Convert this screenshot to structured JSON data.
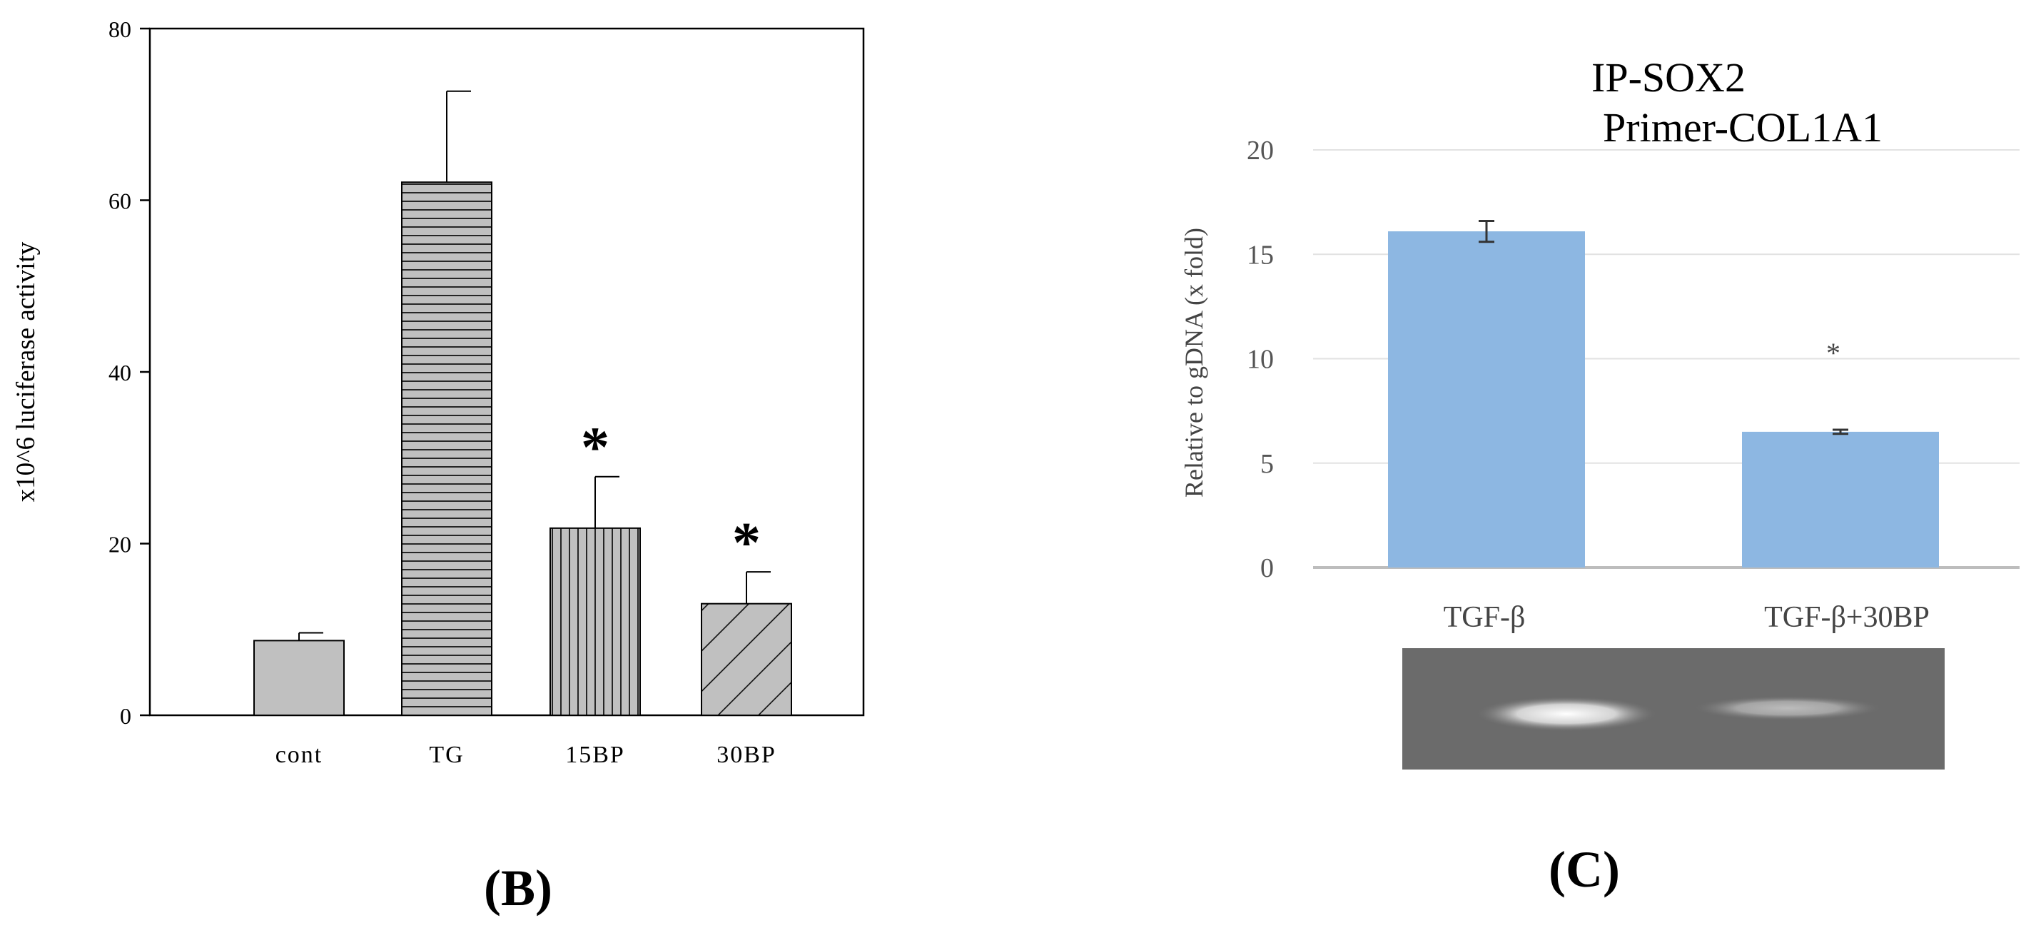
{
  "chart_data": [
    {
      "type": "bar",
      "panel_label": "B",
      "title": "",
      "xlabel": "",
      "ylabel": "x10^6 luciferase activity",
      "ylim": [
        0,
        80
      ],
      "yticks": [
        0,
        20,
        40,
        60,
        80
      ],
      "categories": [
        "cont",
        "TG",
        "15BP",
        "30BP"
      ],
      "values": [
        8.7,
        62.1,
        21.8,
        13.0
      ],
      "errors": [
        0.9,
        10.6,
        6.0,
        3.7
      ],
      "significance": [
        "",
        "",
        "*",
        "*"
      ],
      "patterns": [
        "solid",
        "horizontal",
        "vertical",
        "diagonal"
      ],
      "bar_color": "#c0c0c0",
      "grid": false
    },
    {
      "type": "bar",
      "panel_label": "C",
      "title": "IP-SOX2 Primer-COL1A1",
      "title_lines": [
        "IP-SOX2",
        "Primer-COL1A1"
      ],
      "xlabel": "",
      "ylabel": "Relative to gDNA (x fold)",
      "ylim": [
        0,
        20
      ],
      "yticks": [
        0,
        5,
        10,
        15,
        20
      ],
      "categories": [
        "TGF-β",
        "TGF-β+30BP"
      ],
      "values": [
        16.1,
        6.5
      ],
      "errors": [
        0.5,
        0.1
      ],
      "significance": [
        "",
        "*"
      ],
      "bar_color": "#8db7e2",
      "gel_band_intensity": [
        1.0,
        0.55
      ],
      "grid": true
    }
  ]
}
